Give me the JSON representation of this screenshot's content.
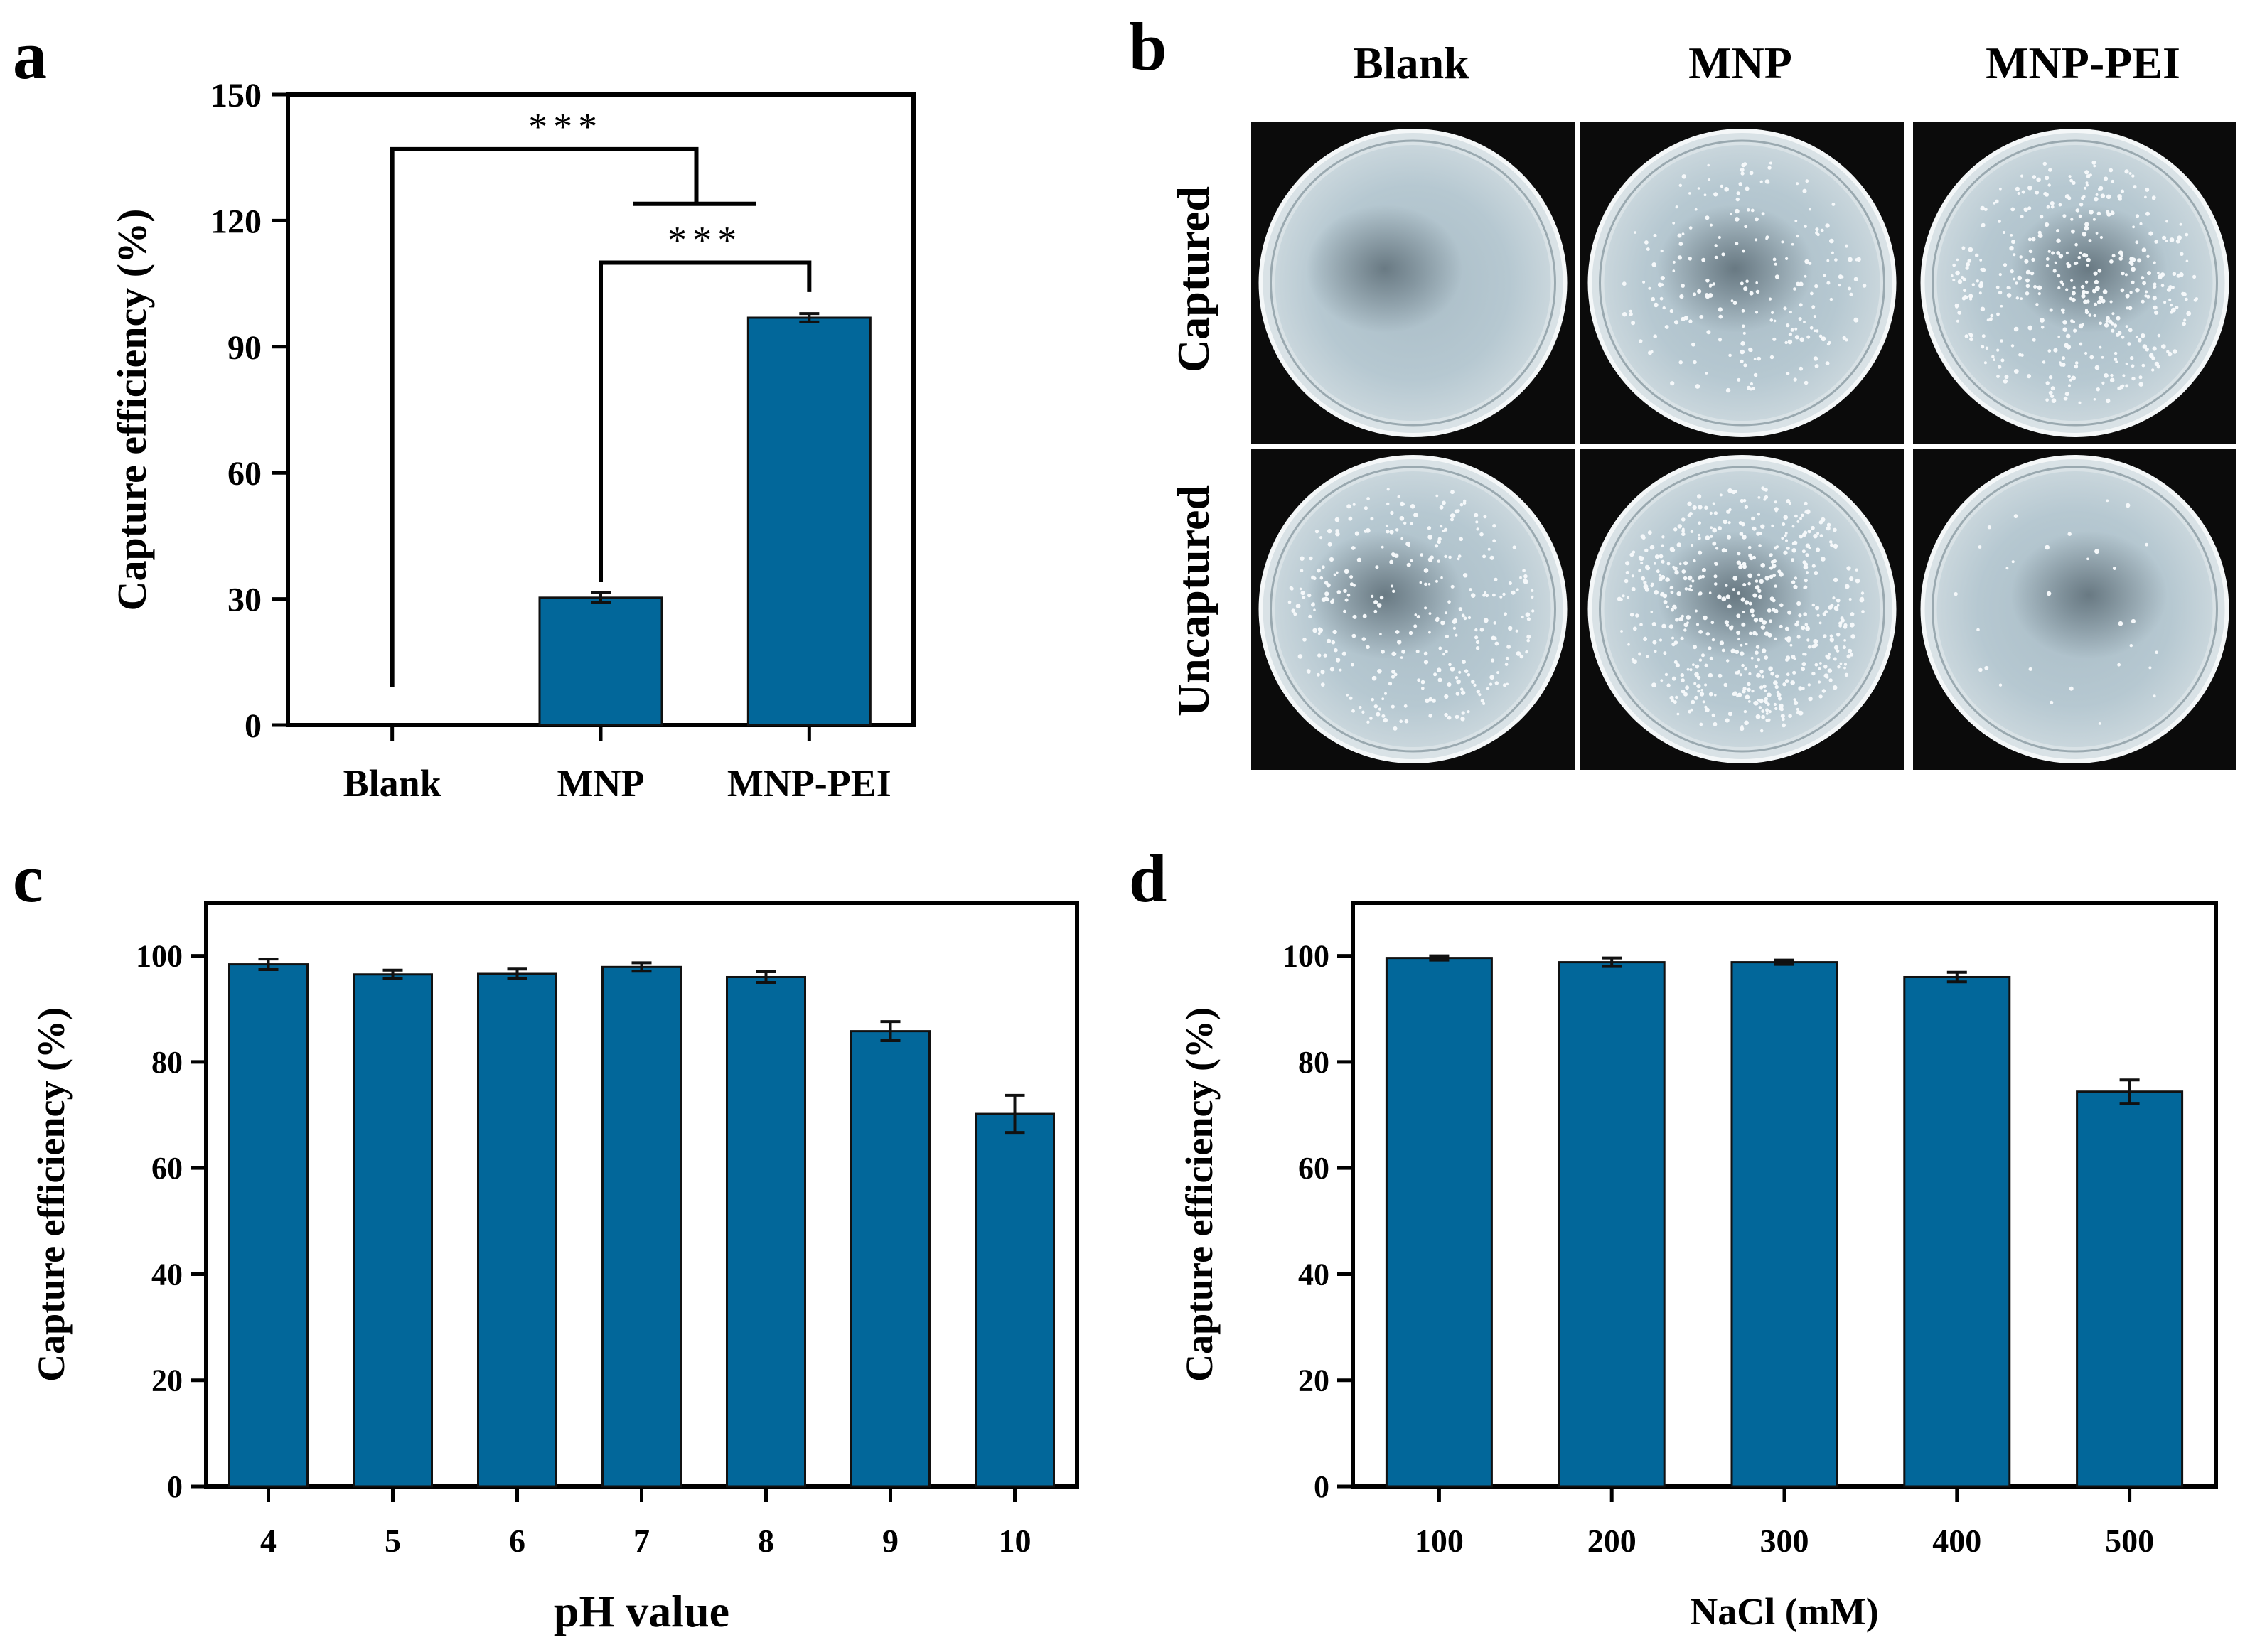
{
  "colors": {
    "bar": "#02679a",
    "bar_edge": "#111111",
    "axis": "#000000",
    "plate_bg": "#0b0b0b",
    "agar": "#b3c6cf"
  },
  "panels": {
    "a": {
      "letter": "a"
    },
    "b": {
      "letter": "b",
      "columns": [
        "Blank",
        "MNP",
        "MNP-PEI"
      ],
      "rows": [
        "Captured",
        "Uncaptured"
      ],
      "colony_density": [
        [
          0,
          220,
          420
        ],
        [
          320,
          560,
          30
        ]
      ]
    },
    "c": {
      "letter": "c"
    },
    "d": {
      "letter": "d"
    }
  },
  "chart_data": [
    {
      "id": "a",
      "type": "bar",
      "categories": [
        "Blank",
        "MNP",
        "MNP-PEI"
      ],
      "values": [
        0,
        30.3,
        96.9
      ],
      "errors": [
        0,
        1.2,
        1.0
      ],
      "title": "",
      "xlabel": "",
      "ylabel": "Capture efficiency (%)",
      "ylim": [
        0,
        150
      ],
      "yticks": [
        0,
        30,
        60,
        90,
        120,
        150
      ],
      "significance": [
        {
          "from": "MNP",
          "to": "MNP-PEI",
          "label": "***"
        },
        {
          "from": "Blank",
          "to": "MNP / MNP-PEI",
          "label": "***"
        }
      ],
      "grid": false
    },
    {
      "id": "c",
      "type": "bar",
      "categories": [
        "4",
        "5",
        "6",
        "7",
        "8",
        "9",
        "10"
      ],
      "values": [
        98.4,
        96.5,
        96.6,
        97.9,
        96.0,
        85.8,
        70.2
      ],
      "errors": [
        1.0,
        0.8,
        0.9,
        0.8,
        1.0,
        1.8,
        3.5
      ],
      "title": "",
      "xlabel": "pH value",
      "ylabel": "Capture efficiency (%)",
      "ylim": [
        0,
        110
      ],
      "yticks": [
        0,
        20,
        40,
        60,
        80,
        100
      ],
      "grid": false
    },
    {
      "id": "d",
      "type": "bar",
      "categories": [
        "100",
        "200",
        "300",
        "400",
        "500"
      ],
      "values": [
        99.6,
        98.8,
        98.8,
        96.0,
        74.4
      ],
      "errors": [
        0.4,
        0.8,
        0.4,
        0.9,
        2.2
      ],
      "title": "",
      "xlabel": "NaCl (mM)",
      "ylabel": "Capture efficiency (%)",
      "ylim": [
        0,
        110
      ],
      "yticks": [
        0,
        20,
        40,
        60,
        80,
        100
      ],
      "grid": false
    }
  ]
}
